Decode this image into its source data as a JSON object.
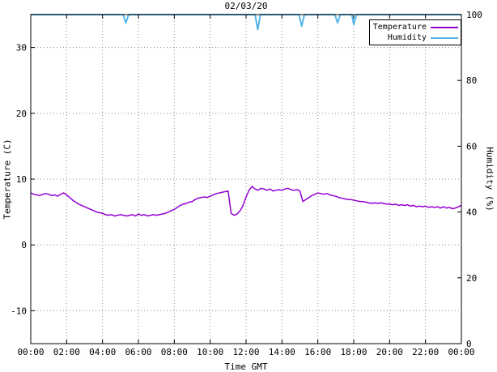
{
  "chart_data": {
    "type": "line",
    "title": "02/03/20",
    "xlabel": "Time GMT",
    "ylabel_left": "Temperature (C)",
    "ylabel_right": "Humidity (%)",
    "x_range": [
      0,
      24
    ],
    "y_left_range": [
      -15,
      35
    ],
    "y_right_range": [
      0,
      100
    ],
    "x_tick_hours": [
      0,
      2,
      4,
      6,
      8,
      10,
      12,
      14,
      16,
      18,
      20,
      22,
      24
    ],
    "x_tick_labels": [
      "00:00",
      "02:00",
      "04:00",
      "06:00",
      "08:00",
      "10:00",
      "12:00",
      "14:00",
      "16:00",
      "18:00",
      "20:00",
      "22:00",
      "00:00"
    ],
    "y_left_ticks": [
      -10,
      0,
      10,
      20,
      30
    ],
    "y_right_ticks": [
      0,
      20,
      40,
      60,
      80,
      100
    ],
    "grid": true,
    "legend_position": "top-right",
    "colors": {
      "temperature": "#9400d3",
      "humidity": "#56b4e9",
      "grid": "#8a8a8a",
      "border": "#000000"
    },
    "series": [
      {
        "name": "Temperature",
        "axis": "left",
        "color": "#9400d3",
        "x_start": 0,
        "x_step_hours": 0.1666667,
        "values": [
          7.9,
          7.7,
          7.6,
          7.5,
          7.7,
          7.8,
          7.7,
          7.5,
          7.6,
          7.4,
          7.7,
          7.9,
          7.6,
          7.2,
          6.8,
          6.5,
          6.2,
          6.0,
          5.8,
          5.6,
          5.4,
          5.2,
          5.0,
          4.9,
          4.8,
          4.6,
          4.5,
          4.6,
          4.4,
          4.5,
          4.6,
          4.5,
          4.4,
          4.5,
          4.6,
          4.4,
          4.7,
          4.5,
          4.6,
          4.4,
          4.5,
          4.6,
          4.5,
          4.6,
          4.7,
          4.8,
          5.0,
          5.2,
          5.4,
          5.7,
          6.0,
          6.2,
          6.3,
          6.5,
          6.6,
          6.9,
          7.1,
          7.2,
          7.3,
          7.2,
          7.4,
          7.6,
          7.8,
          7.9,
          8.0,
          8.1,
          8.2,
          4.8,
          4.5,
          4.7,
          5.2,
          6.0,
          7.3,
          8.3,
          8.9,
          8.5,
          8.3,
          8.6,
          8.5,
          8.3,
          8.5,
          8.2,
          8.3,
          8.4,
          8.3,
          8.5,
          8.6,
          8.4,
          8.3,
          8.4,
          8.2,
          6.6,
          6.9,
          7.2,
          7.5,
          7.7,
          7.9,
          7.8,
          7.7,
          7.8,
          7.6,
          7.5,
          7.4,
          7.2,
          7.1,
          7.0,
          6.9,
          6.9,
          6.8,
          6.7,
          6.6,
          6.6,
          6.5,
          6.4,
          6.3,
          6.4,
          6.3,
          6.4,
          6.3,
          6.2,
          6.2,
          6.1,
          6.2,
          6.0,
          6.1,
          6.0,
          6.1,
          5.9,
          6.0,
          5.8,
          5.9,
          5.8,
          5.9,
          5.7,
          5.8,
          5.7,
          5.8,
          5.6,
          5.8,
          5.6,
          5.7,
          5.5,
          5.6,
          5.8,
          6.0
        ]
      },
      {
        "name": "Humidity",
        "axis": "right",
        "color": "#56b4e9",
        "points": [
          [
            0,
            100
          ],
          [
            5.15,
            100
          ],
          [
            5.3,
            97.5
          ],
          [
            5.45,
            100
          ],
          [
            12.5,
            100
          ],
          [
            12.65,
            95.5
          ],
          [
            12.8,
            100
          ],
          [
            14.95,
            100
          ],
          [
            15.1,
            96.5
          ],
          [
            15.25,
            100
          ],
          [
            16.95,
            100
          ],
          [
            17.1,
            97.5
          ],
          [
            17.25,
            100
          ],
          [
            17.9,
            100
          ],
          [
            18.0,
            97.0
          ],
          [
            18.15,
            100
          ],
          [
            24,
            100
          ]
        ]
      }
    ]
  }
}
